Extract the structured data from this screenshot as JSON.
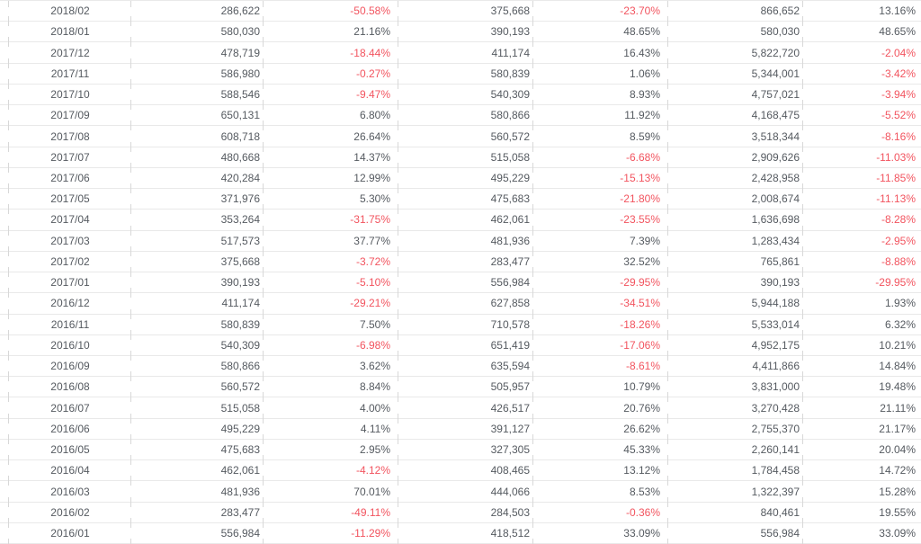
{
  "table": {
    "row_format": [
      "month",
      "value_a",
      "change_a_pct",
      "value_b",
      "change_b_pct",
      "value_c",
      "change_c_pct"
    ],
    "rows": [
      [
        "2018/02",
        "286,622",
        "-50.58%",
        "375,668",
        "-23.70%",
        "866,652",
        "13.16%"
      ],
      [
        "2018/01",
        "580,030",
        "21.16%",
        "390,193",
        "48.65%",
        "580,030",
        "48.65%"
      ],
      [
        "2017/12",
        "478,719",
        "-18.44%",
        "411,174",
        "16.43%",
        "5,822,720",
        "-2.04%"
      ],
      [
        "2017/11",
        "586,980",
        "-0.27%",
        "580,839",
        "1.06%",
        "5,344,001",
        "-3.42%"
      ],
      [
        "2017/10",
        "588,546",
        "-9.47%",
        "540,309",
        "8.93%",
        "4,757,021",
        "-3.94%"
      ],
      [
        "2017/09",
        "650,131",
        "6.80%",
        "580,866",
        "11.92%",
        "4,168,475",
        "-5.52%"
      ],
      [
        "2017/08",
        "608,718",
        "26.64%",
        "560,572",
        "8.59%",
        "3,518,344",
        "-8.16%"
      ],
      [
        "2017/07",
        "480,668",
        "14.37%",
        "515,058",
        "-6.68%",
        "2,909,626",
        "-11.03%"
      ],
      [
        "2017/06",
        "420,284",
        "12.99%",
        "495,229",
        "-15.13%",
        "2,428,958",
        "-11.85%"
      ],
      [
        "2017/05",
        "371,976",
        "5.30%",
        "475,683",
        "-21.80%",
        "2,008,674",
        "-11.13%"
      ],
      [
        "2017/04",
        "353,264",
        "-31.75%",
        "462,061",
        "-23.55%",
        "1,636,698",
        "-8.28%"
      ],
      [
        "2017/03",
        "517,573",
        "37.77%",
        "481,936",
        "7.39%",
        "1,283,434",
        "-2.95%"
      ],
      [
        "2017/02",
        "375,668",
        "-3.72%",
        "283,477",
        "32.52%",
        "765,861",
        "-8.88%"
      ],
      [
        "2017/01",
        "390,193",
        "-5.10%",
        "556,984",
        "-29.95%",
        "390,193",
        "-29.95%"
      ],
      [
        "2016/12",
        "411,174",
        "-29.21%",
        "627,858",
        "-34.51%",
        "5,944,188",
        "1.93%"
      ],
      [
        "2016/11",
        "580,839",
        "7.50%",
        "710,578",
        "-18.26%",
        "5,533,014",
        "6.32%"
      ],
      [
        "2016/10",
        "540,309",
        "-6.98%",
        "651,419",
        "-17.06%",
        "4,952,175",
        "10.21%"
      ],
      [
        "2016/09",
        "580,866",
        "3.62%",
        "635,594",
        "-8.61%",
        "4,411,866",
        "14.84%"
      ],
      [
        "2016/08",
        "560,572",
        "8.84%",
        "505,957",
        "10.79%",
        "3,831,000",
        "19.48%"
      ],
      [
        "2016/07",
        "515,058",
        "4.00%",
        "426,517",
        "20.76%",
        "3,270,428",
        "21.11%"
      ],
      [
        "2016/06",
        "495,229",
        "4.11%",
        "391,127",
        "26.62%",
        "2,755,370",
        "21.17%"
      ],
      [
        "2016/05",
        "475,683",
        "2.95%",
        "327,305",
        "45.33%",
        "2,260,141",
        "20.04%"
      ],
      [
        "2016/04",
        "462,061",
        "-4.12%",
        "408,465",
        "13.12%",
        "1,784,458",
        "14.72%"
      ],
      [
        "2016/03",
        "481,936",
        "70.01%",
        "444,066",
        "8.53%",
        "1,322,397",
        "15.28%"
      ],
      [
        "2016/02",
        "283,477",
        "-49.11%",
        "284,503",
        "-0.36%",
        "840,461",
        "19.55%"
      ],
      [
        "2016/01",
        "556,984",
        "-11.29%",
        "418,512",
        "33.09%",
        "556,984",
        "33.09%"
      ]
    ]
  },
  "colors": {
    "text": "#555a60",
    "negative_text": "#f2545f",
    "grid_line": "#e9e9e9",
    "column_tick": "#d8d8d8",
    "background": "#ffffff"
  }
}
